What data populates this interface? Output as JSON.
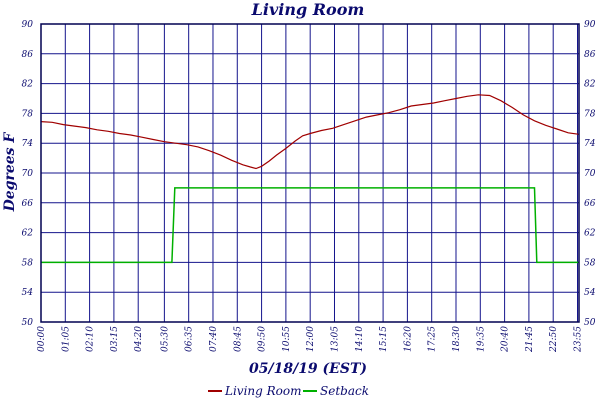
{
  "chart_data": {
    "type": "line",
    "title": "Living Room",
    "xlabel": "05/18/19 (EST)",
    "ylabel": "Degrees F",
    "ylim": [
      50,
      90
    ],
    "y_ticks": [
      "50",
      "54",
      "58",
      "62",
      "66",
      "70",
      "74",
      "78",
      "82",
      "86",
      "90"
    ],
    "x_range_minutes": [
      0,
      1439
    ],
    "x_ticks": [
      "00:00",
      "01:05",
      "02:10",
      "03:15",
      "04:20",
      "05:30",
      "06:35",
      "07:40",
      "08:45",
      "09:50",
      "10:55",
      "12:00",
      "13:05",
      "14:10",
      "15:15",
      "16:20",
      "17:25",
      "18:30",
      "19:35",
      "20:40",
      "21:45",
      "22:50",
      "23:55"
    ],
    "grid": true,
    "legend_position": "bottom",
    "series": [
      {
        "name": "Living Room",
        "color": "#a00000",
        "points": [
          [
            "00:00",
            76.9
          ],
          [
            "00:30",
            76.8
          ],
          [
            "01:00",
            76.5
          ],
          [
            "01:30",
            76.3
          ],
          [
            "02:00",
            76.1
          ],
          [
            "02:30",
            75.8
          ],
          [
            "03:00",
            75.6
          ],
          [
            "03:30",
            75.3
          ],
          [
            "04:00",
            75.1
          ],
          [
            "04:30",
            74.8
          ],
          [
            "05:00",
            74.5
          ],
          [
            "05:30",
            74.2
          ],
          [
            "06:00",
            74.0
          ],
          [
            "06:30",
            73.8
          ],
          [
            "07:00",
            73.5
          ],
          [
            "07:30",
            73.0
          ],
          [
            "08:00",
            72.4
          ],
          [
            "08:30",
            71.7
          ],
          [
            "09:00",
            71.1
          ],
          [
            "09:20",
            70.8
          ],
          [
            "09:35",
            70.6
          ],
          [
            "09:50",
            70.9
          ],
          [
            "10:10",
            71.6
          ],
          [
            "10:30",
            72.4
          ],
          [
            "10:55",
            73.3
          ],
          [
            "11:20",
            74.3
          ],
          [
            "11:40",
            75.0
          ],
          [
            "12:00",
            75.3
          ],
          [
            "12:30",
            75.7
          ],
          [
            "13:00",
            76.0
          ],
          [
            "13:30",
            76.5
          ],
          [
            "14:00",
            77.0
          ],
          [
            "14:30",
            77.5
          ],
          [
            "15:00",
            77.8
          ],
          [
            "15:30",
            78.1
          ],
          [
            "16:00",
            78.5
          ],
          [
            "16:30",
            79.0
          ],
          [
            "17:00",
            79.2
          ],
          [
            "17:30",
            79.4
          ],
          [
            "18:00",
            79.7
          ],
          [
            "18:30",
            80.0
          ],
          [
            "19:00",
            80.3
          ],
          [
            "19:30",
            80.5
          ],
          [
            "20:00",
            80.4
          ],
          [
            "20:30",
            79.7
          ],
          [
            "21:00",
            78.8
          ],
          [
            "21:30",
            77.8
          ],
          [
            "22:00",
            77.0
          ],
          [
            "22:30",
            76.4
          ],
          [
            "23:00",
            75.9
          ],
          [
            "23:30",
            75.4
          ],
          [
            "23:59",
            75.2
          ]
        ]
      },
      {
        "name": "Setback",
        "color": "#00b000",
        "points": [
          [
            "00:00",
            58
          ],
          [
            "05:50",
            58
          ],
          [
            "05:58",
            68
          ],
          [
            "22:00",
            68
          ],
          [
            "22:06",
            58
          ],
          [
            "23:59",
            58
          ]
        ]
      }
    ]
  }
}
